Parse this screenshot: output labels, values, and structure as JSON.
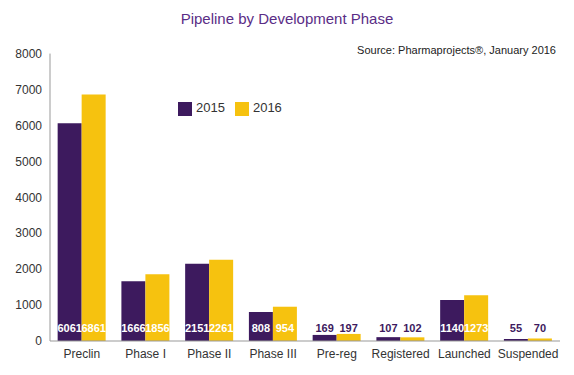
{
  "chart_data": {
    "type": "bar",
    "title": "Pipeline by Development Phase",
    "subtitle": "Source: Pharmaprojects®, January 2016",
    "categories": [
      "Preclin",
      "Phase I",
      "Phase II",
      "Phase III",
      "Pre-reg",
      "Registered",
      "Launched",
      "Suspended"
    ],
    "series": [
      {
        "name": "2015",
        "color": "#3d1a5e",
        "values": [
          6061,
          1666,
          2151,
          808,
          169,
          107,
          1140,
          55
        ]
      },
      {
        "name": "2016",
        "color": "#f6c20f",
        "values": [
          6861,
          1856,
          2261,
          954,
          197,
          102,
          1273,
          70
        ]
      }
    ],
    "ylim": [
      0,
      8000
    ],
    "yticks": [
      0,
      1000,
      2000,
      3000,
      4000,
      5000,
      6000,
      7000,
      8000
    ],
    "grid": false,
    "legend": "upper left",
    "data_labels": true
  }
}
